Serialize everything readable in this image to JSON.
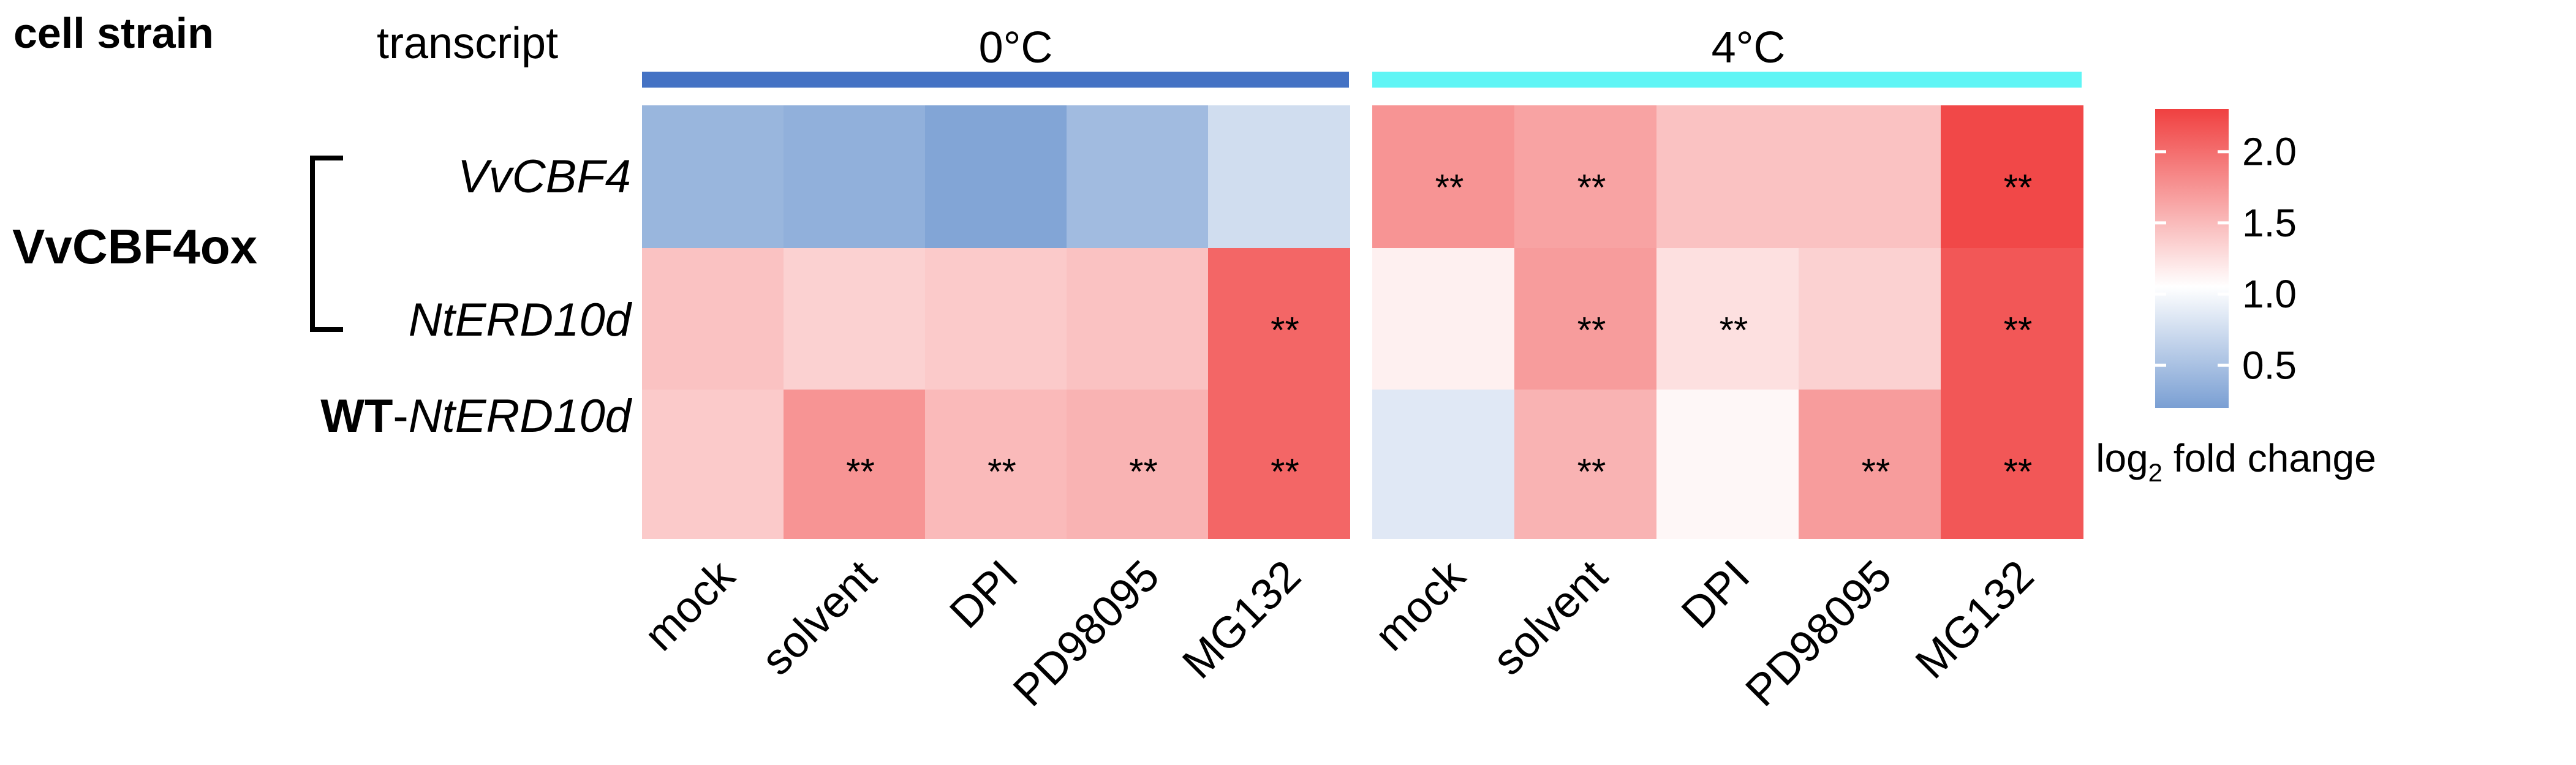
{
  "chart_data": {
    "type": "heatmap",
    "header": {
      "cell_strain": "cell strain",
      "transcript": "transcript"
    },
    "groups": [
      {
        "label": "0°C",
        "color": "#4472c4"
      },
      {
        "label": "4°C",
        "color": "#5ff5f5"
      }
    ],
    "columns": [
      "mock",
      "solvent",
      "DPI",
      "PD98095",
      "MG132"
    ],
    "rows": [
      {
        "strain": "VvCBF4ox",
        "transcript": "VvCBF4"
      },
      {
        "strain": "VvCBF4ox",
        "transcript": "NtERD10d"
      },
      {
        "strain": "WT",
        "transcript": "NtERD10d"
      }
    ],
    "strain_labels": {
      "vvcbf4ox": "VvCBF4ox",
      "wt_prefix": "WT",
      "wt_transcript": "NtERD10d",
      "wt_separator": "-"
    },
    "values": [
      [
        0.4,
        0.35,
        0.25,
        0.45,
        0.75,
        1.75,
        1.65,
        1.45,
        1.45,
        2.25
      ],
      [
        1.45,
        1.35,
        1.4,
        1.45,
        2.05,
        1.15,
        1.7,
        1.25,
        1.35,
        2.15
      ],
      [
        1.4,
        1.75,
        1.5,
        1.55,
        2.05,
        0.85,
        1.55,
        1.1,
        1.7,
        2.15
      ]
    ],
    "significance": [
      [
        "",
        "",
        "",
        "",
        "",
        "**",
        "**",
        "",
        "",
        "**"
      ],
      [
        "",
        "",
        "",
        "",
        "**",
        "",
        "**",
        "**",
        "",
        "**"
      ],
      [
        "",
        "**",
        "**",
        "**",
        "**",
        "",
        "**",
        "",
        "**",
        "**"
      ]
    ],
    "colorbar": {
      "ticks": [
        "2.0",
        "1.5",
        "1.0",
        "0.5"
      ],
      "tick_values": [
        2.0,
        1.5,
        1.0,
        0.5
      ],
      "range": [
        0.2,
        2.3
      ],
      "low_color": "#7a9fd3",
      "mid_color": "#ffffff",
      "high_color": "#f04040",
      "label_main": "log",
      "label_sub": "2",
      "label_rest": " fold change"
    }
  }
}
